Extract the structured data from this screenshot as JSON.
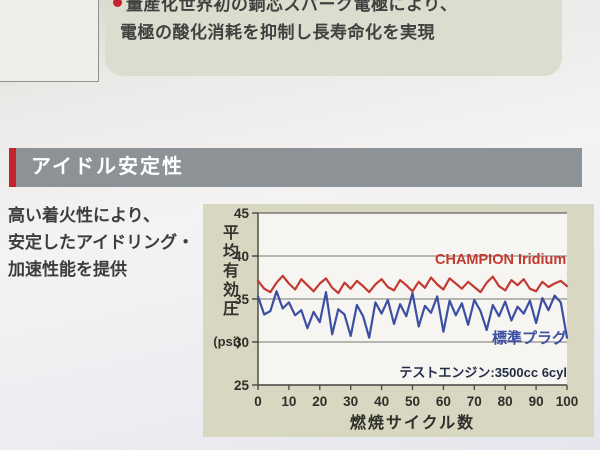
{
  "theme": {
    "accent_red": "#c5232b",
    "header_gray": "#8c9296",
    "panel_beige": "#d8d7c1",
    "plot_white": "#f6f5f1",
    "grid_color": "#75756d",
    "axis_color": "#45453f"
  },
  "note": {
    "line1": "量産化世界初の銅芯スパーク電極により、",
    "line2": "電極の酸化消耗を抑制し長寿命化を実現"
  },
  "section": {
    "title": "アイドル安定性"
  },
  "intro": {
    "line1": "高い着火性により、",
    "line2": "安定したアイドリング・",
    "line3": "加速性能を提供"
  },
  "chart_data": {
    "type": "line",
    "title": "",
    "ylabel": "平均有効圧",
    "ylabel_unit": "(psi)",
    "xlabel": "燃焼サイクル数",
    "annotation": "テストエンジン:3500cc 6cyl",
    "ylim": [
      25,
      45
    ],
    "xlim": [
      0,
      100
    ],
    "y_ticks": [
      45,
      40,
      35,
      30,
      25
    ],
    "x_ticks": [
      0,
      10,
      20,
      30,
      40,
      50,
      60,
      70,
      80,
      90,
      100
    ],
    "grid": "horizontal",
    "legend_position": "inline-labels",
    "x_step": 2,
    "series": [
      {
        "name": "CHAMPION Iridium",
        "color": "#c23a31",
        "values": [
          37.1,
          36.2,
          35.8,
          36.9,
          37.7,
          36.8,
          36.1,
          37.3,
          36.6,
          35.9,
          36.8,
          37.4,
          36.3,
          35.7,
          36.9,
          36.2,
          37.1,
          36.5,
          35.8,
          36.7,
          37.3,
          36.4,
          36.0,
          37.2,
          36.6,
          35.9,
          37.0,
          36.3,
          37.5,
          36.7,
          36.1,
          37.4,
          36.8,
          36.2,
          37.0,
          36.4,
          35.8,
          36.9,
          37.6,
          36.5,
          36.0,
          37.2,
          36.6,
          37.3,
          36.2,
          35.9,
          37.0,
          36.4,
          36.8,
          37.1,
          36.5
        ]
      },
      {
        "name": "標準プラグ",
        "color": "#3c4fa3",
        "values": [
          35.3,
          33.2,
          33.6,
          35.9,
          33.9,
          34.6,
          33.1,
          33.7,
          31.6,
          33.5,
          32.3,
          35.8,
          30.9,
          33.8,
          33.2,
          30.7,
          34.3,
          33.0,
          30.5,
          34.6,
          33.3,
          34.9,
          32.1,
          34.4,
          33.0,
          35.7,
          31.8,
          34.2,
          33.4,
          35.3,
          31.2,
          34.8,
          33.1,
          34.5,
          32.0,
          34.9,
          33.6,
          31.4,
          34.3,
          33.0,
          34.7,
          32.5,
          34.1,
          33.3,
          34.8,
          32.2,
          35.1,
          33.7,
          35.4,
          34.6,
          30.5
        ]
      }
    ]
  }
}
